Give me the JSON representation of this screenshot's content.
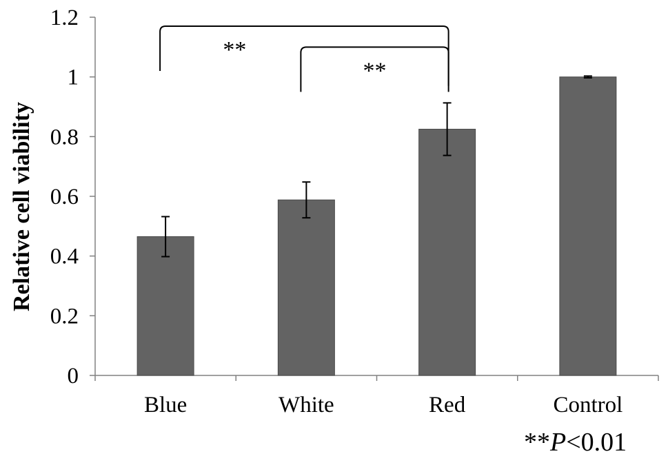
{
  "chart_data": {
    "type": "bar",
    "title": "",
    "xlabel": "",
    "ylabel": "Relative cell viability",
    "categories": [
      "Blue",
      "White",
      "Red",
      "Control"
    ],
    "values": [
      0.465,
      0.588,
      0.825,
      1.0
    ],
    "errors": [
      0.067,
      0.06,
      0.088,
      0.003
    ],
    "ylim": [
      0,
      1.2
    ],
    "yticks": [
      0,
      0.2,
      0.4,
      0.6,
      0.8,
      1,
      1.2
    ],
    "ytick_labels": [
      "0",
      "0.2",
      "0.4",
      "0.6",
      "0.8",
      "1",
      "1.2"
    ],
    "grid": false,
    "bar_color": "#636363",
    "significance": [
      {
        "from": "Blue",
        "to": "Red",
        "label": "**",
        "y": 1.17,
        "start_y": 1.02,
        "end_y": 0.97
      },
      {
        "from": "White",
        "to": "Red",
        "label": "**",
        "y": 1.1,
        "start_y": 0.95,
        "end_y": 0.95
      }
    ]
  },
  "footnote": {
    "stars": "**",
    "p_symbol": "P",
    "comparison": "<0.01"
  }
}
